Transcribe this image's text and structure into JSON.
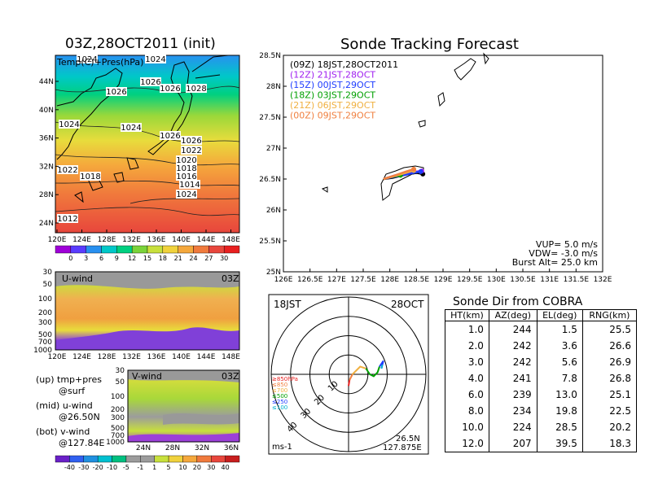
{
  "left_title": "03Z,28OCT2011 (init)",
  "right_title": "Sonde Tracking Forecast",
  "map_panel": {
    "label": "Temp(C)+Pres(hPa)",
    "lat_ticks": [
      "44N",
      "40N",
      "36N",
      "32N",
      "28N",
      "24N"
    ],
    "lon_ticks": [
      "120E",
      "124E",
      "128E",
      "132E",
      "136E",
      "140E",
      "144E",
      "148E"
    ],
    "contour_labels": [
      "1024",
      "1024",
      "1026",
      "1026",
      "1028",
      "1026",
      "1024",
      "1024",
      "1026",
      "1026",
      "1022",
      "1020",
      "1018",
      "1016",
      "1014",
      "1024",
      "1022",
      "1018",
      "1012"
    ],
    "colorbar_ticks": [
      "0",
      "3",
      "6",
      "9",
      "12",
      "15",
      "18",
      "21",
      "24",
      "27",
      "30"
    ],
    "colorbar_colors": [
      "#9f00d8",
      "#5a3cff",
      "#2890f0",
      "#00c8c8",
      "#00d080",
      "#7ad33a",
      "#c8e03c",
      "#f0d23c",
      "#f5a83c",
      "#f07a3c",
      "#e8463c",
      "#e82020"
    ]
  },
  "uwind_panel": {
    "label": "U-wind",
    "time": "03Z",
    "p_ticks": [
      "30",
      "50",
      "100",
      "200",
      "300",
      "500",
      "700",
      "1000"
    ],
    "lon_ticks": [
      "120E",
      "124E",
      "128E",
      "132E",
      "136E",
      "140E",
      "144E",
      "148E"
    ]
  },
  "vwind_panel": {
    "label": "V-wind",
    "time": "03Z",
    "p_ticks": [
      "30",
      "50",
      "100",
      "200",
      "300",
      "500",
      "700",
      "1000"
    ],
    "lat_ticks": [
      "24N",
      "28N",
      "32N",
      "36N"
    ],
    "colorbar_ticks": [
      "-40",
      "-30",
      "-20",
      "-10",
      "-5",
      "-1",
      "1",
      "5",
      "10",
      "20",
      "30",
      "40"
    ]
  },
  "panel_notes": [
    {
      "line1": "(up) tmp+pres",
      "line2": "@surf"
    },
    {
      "line1": "(mid) u-wind",
      "line2": "@26.50N"
    },
    {
      "line1": "(bot) v-wind",
      "line2": "@127.84E"
    }
  ],
  "track_panel": {
    "lat_ticks": [
      "28.5N",
      "28N",
      "27.5N",
      "27N",
      "26.5N",
      "26N",
      "25.5N",
      "25N"
    ],
    "lon_ticks": [
      "126E",
      "126.5E",
      "127E",
      "127.5E",
      "128E",
      "128.5E",
      "129E",
      "129.5E",
      "130E",
      "130.5E",
      "131E",
      "131.5E",
      "132E"
    ],
    "legend": [
      {
        "text": "(09Z)  18JST,28OCT2011",
        "color": "#000000"
      },
      {
        "text": "(12Z)  21JST,28OCT",
        "color": "#a020f0"
      },
      {
        "text": "(15Z)  00JST,29OCT",
        "color": "#1e3cff"
      },
      {
        "text": "(18Z)  03JST,29OCT",
        "color": "#00a000"
      },
      {
        "text": "(21Z)  06JST,29OCT",
        "color": "#f0b040"
      },
      {
        "text": "(00Z)  09JST,29OCT",
        "color": "#f08040"
      }
    ],
    "params": [
      "VUP=  5.0  m/s",
      "VDW=  -3.0  m/s",
      "Burst Alt=  25.0  km"
    ]
  },
  "polar_panel": {
    "left_time": "18JST",
    "right_date": "28OCT",
    "ring_labels": [
      "10",
      "20",
      "30",
      "40"
    ],
    "levels": [
      {
        "text": "≥850hPa",
        "color": "#e82020"
      },
      {
        "text": "≤850",
        "color": "#f08040"
      },
      {
        "text": "≤700",
        "color": "#f0b040"
      },
      {
        "text": "≤500",
        "color": "#00a000"
      },
      {
        "text": "≤250",
        "color": "#1e3cff"
      },
      {
        "text": "≤100",
        "color": "#00b0d0"
      }
    ],
    "units": "ms-1",
    "location_lat": "26.5N",
    "location_lon": "127.875E"
  },
  "sonde_table": {
    "title": "Sonde Dir from COBRA",
    "headers": [
      "HT(km)",
      "AZ(deg)",
      "EL(deg)",
      "RNG(km)"
    ],
    "rows": [
      [
        "1.0",
        "244",
        "1.5",
        "25.5"
      ],
      [
        "2.0",
        "242",
        "3.6",
        "26.6"
      ],
      [
        "3.0",
        "242",
        "5.6",
        "26.9"
      ],
      [
        "4.0",
        "241",
        "7.8",
        "26.8"
      ],
      [
        "6.0",
        "239",
        "13.0",
        "25.1"
      ],
      [
        "8.0",
        "234",
        "19.8",
        "22.5"
      ],
      [
        "10.0",
        "224",
        "28.5",
        "20.2"
      ],
      [
        "12.0",
        "207",
        "39.5",
        "18.3"
      ]
    ]
  },
  "chart_data": [
    {
      "type": "table",
      "title": "Sonde Dir from COBRA",
      "columns": [
        "HT(km)",
        "AZ(deg)",
        "EL(deg)",
        "RNG(km)"
      ],
      "rows": [
        [
          1.0,
          244,
          1.5,
          25.5
        ],
        [
          2.0,
          242,
          3.6,
          26.6
        ],
        [
          3.0,
          242,
          5.6,
          26.9
        ],
        [
          4.0,
          241,
          7.8,
          26.8
        ],
        [
          6.0,
          239,
          13.0,
          25.1
        ],
        [
          8.0,
          234,
          19.8,
          22.5
        ],
        [
          10.0,
          224,
          28.5,
          20.2
        ],
        [
          12.0,
          207,
          39.5,
          18.3
        ]
      ]
    },
    {
      "type": "line",
      "x_range": [
        126,
        132
      ],
      "y_range": [
        25,
        28.5
      ],
      "series": [
        {
          "name": "(09Z)  18JST,28OCT2011",
          "color": "#000000",
          "x": [
            127.88,
            128.05,
            128.2,
            128.35,
            128.5,
            128.62
          ],
          "y": [
            26.5,
            26.52,
            26.55,
            26.58,
            26.6,
            26.58
          ]
        },
        {
          "name": "(12Z)  21JST,28OCT",
          "color": "#a020f0",
          "x": [
            127.88,
            128.1,
            128.3,
            128.5,
            128.6
          ],
          "y": [
            26.5,
            26.56,
            26.6,
            26.62,
            26.63
          ]
        },
        {
          "name": "(15Z)  00JST,29OCT",
          "color": "#1e3cff",
          "x": [
            127.88,
            128.1,
            128.3,
            128.5,
            128.58
          ],
          "y": [
            26.5,
            26.54,
            26.57,
            26.61,
            26.62
          ]
        },
        {
          "name": "(18Z)  03JST,29OCT",
          "color": "#00a000",
          "x": [
            127.88,
            128.0,
            128.2
          ],
          "y": [
            26.5,
            26.53,
            26.56
          ]
        },
        {
          "name": "(21Z)  06JST,29OCT",
          "color": "#f0b040",
          "x": [
            127.88,
            128.1,
            128.3,
            128.45
          ],
          "y": [
            26.5,
            26.55,
            26.6,
            26.64
          ]
        },
        {
          "name": "(00Z)  09JST,29OCT",
          "color": "#f08040",
          "x": [
            127.88,
            128.1,
            128.3,
            128.45
          ],
          "y": [
            26.5,
            26.56,
            26.62,
            26.66
          ]
        }
      ]
    },
    {
      "type": "line",
      "title": "",
      "x_range": [
        -40,
        40
      ],
      "y_range": [
        -40,
        40
      ],
      "series": [
        {
          "name": "≥850hPa",
          "color": "#e82020",
          "x": [
            0,
            0.5
          ],
          "y": [
            -6,
            -3
          ]
        },
        {
          "name": "≤850",
          "color": "#f08040",
          "x": [
            0.5,
            2
          ],
          "y": [
            -3,
            0
          ]
        },
        {
          "name": "≤700",
          "color": "#f0b040",
          "x": [
            2,
            6,
            9
          ],
          "y": [
            0,
            4,
            3
          ]
        },
        {
          "name": "≤500",
          "color": "#00a000",
          "x": [
            9,
            11,
            13,
            15,
            16
          ],
          "y": [
            3,
            0,
            -1,
            1,
            4
          ]
        },
        {
          "name": "≤250",
          "color": "#1e3cff",
          "x": [
            16,
            18,
            17
          ],
          "y": [
            4,
            7,
            3
          ]
        },
        {
          "name": "≤100",
          "color": "#00b0d0",
          "x": [
            17,
            17.5
          ],
          "y": [
            3,
            5
          ]
        }
      ]
    }
  ]
}
